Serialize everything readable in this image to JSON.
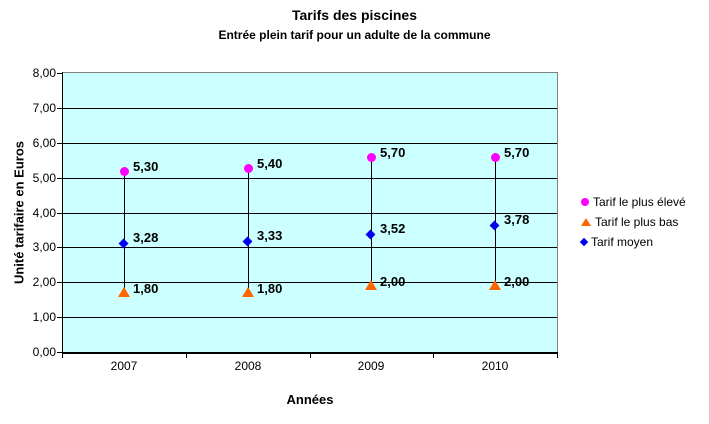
{
  "chart_data": {
    "type": "scatter",
    "title": "Tarifs des piscines",
    "subtitle": "Entrée plein tarif pour un adulte de la commune",
    "xlabel": "Années",
    "ylabel": "Unité tarifaire en Euros",
    "categories": [
      "2007",
      "2008",
      "2009",
      "2010"
    ],
    "series": [
      {
        "name": "Tarif le plus élevé",
        "marker": "circle",
        "color": "#FF00FF",
        "values": [
          5.3,
          5.4,
          5.7,
          5.7
        ],
        "labels": [
          "5,30",
          "5,40",
          "5,70",
          "5,70"
        ]
      },
      {
        "name": "Tarif le plus bas",
        "marker": "triangle",
        "color": "#FF6600",
        "values": [
          1.8,
          1.8,
          2.0,
          2.0
        ],
        "labels": [
          "1,80",
          "1,80",
          "2,00",
          "2,00"
        ]
      },
      {
        "name": "Tarif moyen",
        "marker": "diamond",
        "color": "#0000EE",
        "values": [
          3.28,
          3.33,
          3.52,
          3.78
        ],
        "labels": [
          "3,28",
          "3,33",
          "3,52",
          "3,78"
        ]
      }
    ],
    "ylim": [
      0,
      8
    ],
    "ytick_step": 1,
    "ytick_labels": [
      "0,00",
      "1,00",
      "2,00",
      "3,00",
      "4,00",
      "5,00",
      "6,00",
      "7,00",
      "8,00"
    ],
    "grid": true,
    "high_low_lines": true,
    "legend_position": "right",
    "colors": {
      "plot_bg": "#CCFFFF",
      "grid": "#000000",
      "plot_border": "#808080",
      "axis": "#000000",
      "text": "#000000"
    }
  }
}
